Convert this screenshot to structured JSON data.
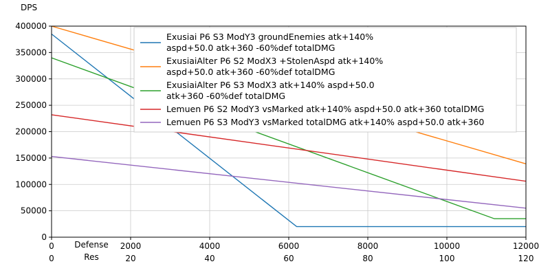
{
  "chart_data": {
    "type": "line",
    "ylabel": "DPS",
    "xlabel_row1": "Defense",
    "xlabel_row2": "Res",
    "xlim": [
      0,
      12000
    ],
    "ylim": [
      0,
      400000
    ],
    "x_ticks_defense": [
      0,
      2000,
      4000,
      6000,
      8000,
      10000,
      12000
    ],
    "x_ticks_res": [
      0,
      20,
      40,
      60,
      80,
      100,
      120
    ],
    "y_ticks": [
      0,
      50000,
      100000,
      150000,
      200000,
      250000,
      300000,
      350000,
      400000
    ],
    "grid": true,
    "grid_color": "#c9c9c9",
    "legend_position": "upper center",
    "series": [
      {
        "name": "Exusiai P6 S3 ModY3 groundEnemies atk+140% aspd+50.0 atk+360 -60%def totalDMG",
        "label_lines": [
          "Exusiai P6 S3 ModY3 groundEnemies atk+140%",
          "aspd+50.0 atk+360 -60%def totalDMG"
        ],
        "color": "#1f77b4",
        "x": [
          0,
          6200,
          12000
        ],
        "y": [
          385000,
          20000,
          20000
        ]
      },
      {
        "name": "ExusiaiAlter P6 S2 ModX3 +StolenAspd atk+140% aspd+50.0 atk+360 -60%def totalDMG",
        "label_lines": [
          "ExusiaiAlter P6 S2 ModX3 +StolenAspd atk+140%",
          "aspd+50.0 atk+360 -60%def totalDMG"
        ],
        "color": "#ff7f0e",
        "x": [
          0,
          12000
        ],
        "y": [
          400000,
          139000
        ]
      },
      {
        "name": "ExusiaiAlter P6 S3 ModX3 atk+140% aspd+50.0 atk+360 -60%def totalDMG",
        "label_lines": [
          "ExusiaiAlter P6 S3 ModX3 atk+140% aspd+50.0",
          "atk+360 -60%def totalDMG"
        ],
        "color": "#2ca02c",
        "x": [
          0,
          11200,
          12000
        ],
        "y": [
          340000,
          35000,
          35000
        ]
      },
      {
        "name": "Lemuen P6 S2 ModY3 vsMarked atk+140% aspd+50.0 atk+360 totalDMG",
        "label_lines": [
          "Lemuen P6 S2 ModY3 vsMarked atk+140% aspd+50.0 atk+360 totalDMG"
        ],
        "color": "#d62728",
        "x": [
          0,
          12000
        ],
        "y": [
          232000,
          106000
        ]
      },
      {
        "name": "Lemuen P6 S3 ModY3 vsMarked totalDMG atk+140% aspd+50.0 atk+360",
        "label_lines": [
          "Lemuen P6 S3 ModY3 vsMarked totalDMG atk+140% aspd+50.0 atk+360"
        ],
        "color": "#9467bd",
        "x": [
          0,
          12000
        ],
        "y": [
          153000,
          55000
        ]
      }
    ]
  }
}
